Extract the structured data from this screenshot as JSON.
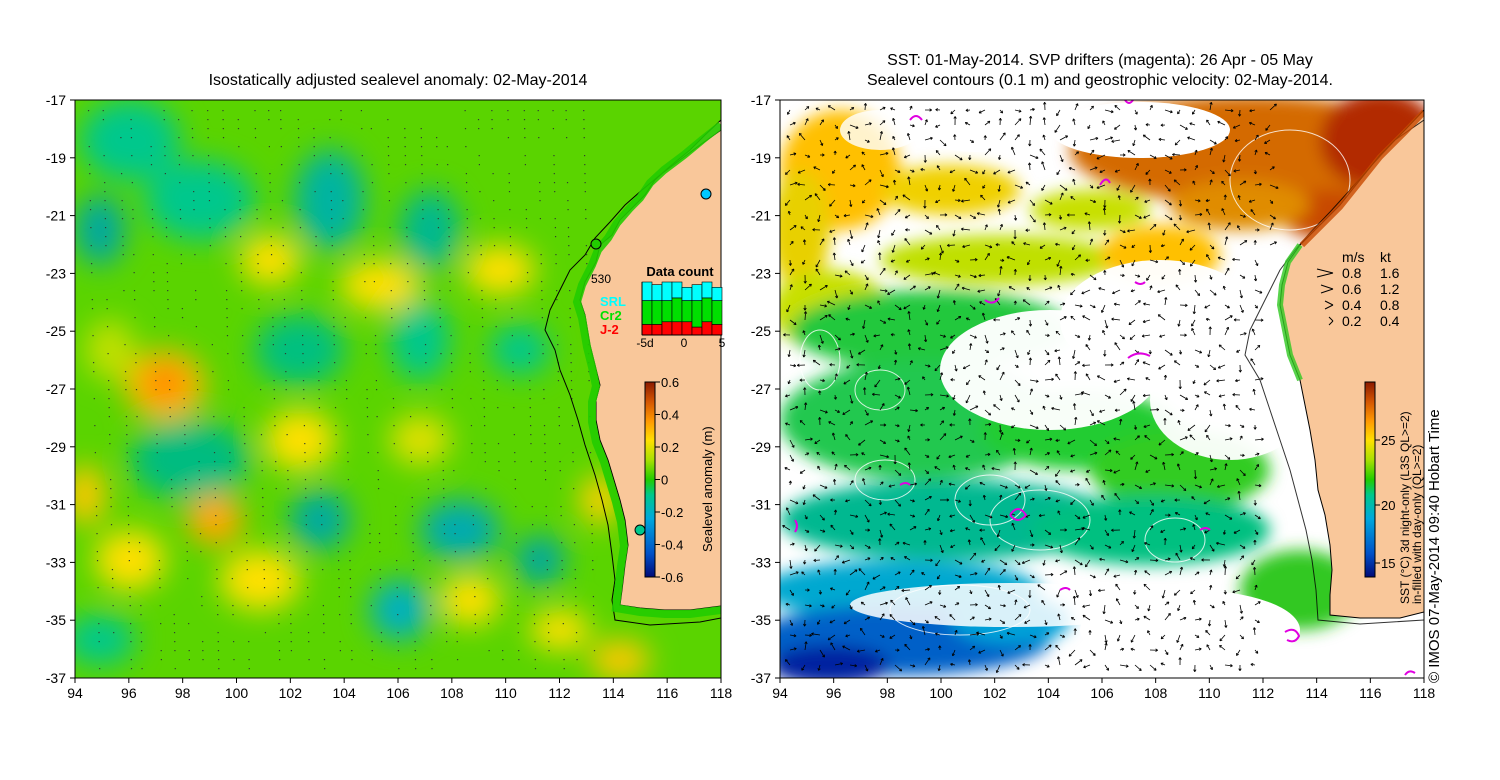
{
  "left_panel": {
    "title": "Isostatically adjusted sealevel anomaly: 02-May-2014",
    "colorbar": {
      "label": "Sealevel anomaly (m)",
      "ticks": [
        "0.6",
        "0.4",
        "0.2",
        "0",
        "-0.2",
        "-0.4",
        "-0.6"
      ],
      "colors": [
        "#8b1a00",
        "#d45500",
        "#ff9900",
        "#ffe000",
        "#a8e000",
        "#22cc00",
        "#00c88c",
        "#00a8dc",
        "#0050c8",
        "#000a78"
      ]
    },
    "data_count": {
      "title": "Data count",
      "total": "530",
      "legend": [
        {
          "name": "SRL",
          "color": "#00ffff"
        },
        {
          "name": "Cr2",
          "color": "#00e000"
        },
        {
          "name": "J-2",
          "color": "#ff0000"
        }
      ],
      "x_ticks": [
        "-5d",
        "0",
        "5"
      ],
      "bars": [
        {
          "srl": 0.35,
          "cr2": 0.45,
          "j2": 0.2
        },
        {
          "srl": 0.3,
          "cr2": 0.45,
          "j2": 0.2
        },
        {
          "srl": 0.35,
          "cr2": 0.4,
          "j2": 0.25
        },
        {
          "srl": 0.3,
          "cr2": 0.45,
          "j2": 0.25
        },
        {
          "srl": 0.25,
          "cr2": 0.4,
          "j2": 0.25
        },
        {
          "srl": 0.3,
          "cr2": 0.5,
          "j2": 0.15
        },
        {
          "srl": 0.3,
          "cr2": 0.45,
          "j2": 0.25
        },
        {
          "srl": 0.25,
          "cr2": 0.45,
          "j2": 0.2
        }
      ]
    }
  },
  "right_panel": {
    "title_line1": "SST: 01-May-2014. SVP drifters (magenta): 26 Apr - 05 May",
    "title_line2": "Sealevel contours (0.1 m) and geostrophic velocity: 02-May-2014.",
    "speed_legend": {
      "header_ms": "m/s",
      "header_kt": "kt",
      "rows": [
        {
          "ms": "0.8",
          "kt": "1.6"
        },
        {
          "ms": "0.6",
          "kt": "1.2"
        },
        {
          "ms": "0.4",
          "kt": "0.8"
        },
        {
          "ms": "0.2",
          "kt": "0.4"
        }
      ]
    },
    "colorbar": {
      "label_line1": "SST (°C) 3d night-only (L3S QL>=2)",
      "label_line2": "in-filled with day-only (QL>=2)",
      "ticks": [
        "25",
        "20",
        "15"
      ],
      "colors": [
        "#8b1a00",
        "#d45500",
        "#ff9900",
        "#ffe000",
        "#a8e000",
        "#22cc00",
        "#00c88c",
        "#00a8dc",
        "#0050c8",
        "#000a78"
      ]
    }
  },
  "axes": {
    "y_ticks": [
      "-17",
      "-19",
      "-21",
      "-23",
      "-25",
      "-27",
      "-29",
      "-31",
      "-33",
      "-35",
      "-37"
    ],
    "x_ticks": [
      "94",
      "96",
      "98",
      "100",
      "102",
      "104",
      "106",
      "108",
      "110",
      "112",
      "114",
      "116",
      "118"
    ]
  },
  "copyright": "© IMOS 07-May-2014 09:40 Hobart Time",
  "colors": {
    "land": "#f9c79a",
    "coast": "#000000",
    "drifter": "#e000e0"
  }
}
